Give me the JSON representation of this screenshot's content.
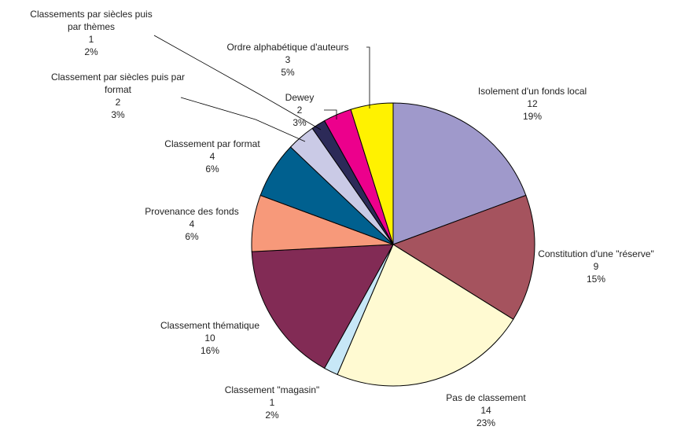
{
  "chart_data": {
    "type": "pie",
    "categories": [
      "Isolement d'un fonds local",
      "Constitution d'une \"réserve\"",
      "Pas de classement",
      "Classement \"magasin\"",
      "Classement thématique",
      "Provenance des fonds",
      "Classement par format",
      "Classement par siècles puis par format",
      "Classements par siècles puis par thèmes",
      "Dewey",
      "Ordre alphabétique d'auteurs"
    ],
    "values": [
      12,
      9,
      14,
      1,
      10,
      4,
      4,
      2,
      1,
      2,
      3
    ],
    "percent_labels": [
      "19%",
      "15%",
      "23%",
      "2%",
      "16%",
      "6%",
      "6%",
      "3%",
      "2%",
      "3%",
      "5%"
    ],
    "colors": [
      "#9f99cb",
      "#a5535e",
      "#fffad2",
      "#c7e7f7",
      "#822b55",
      "#f7997a",
      "#00608f",
      "#cacae6",
      "#2c2a58",
      "#ec008c",
      "#fff200"
    ]
  }
}
